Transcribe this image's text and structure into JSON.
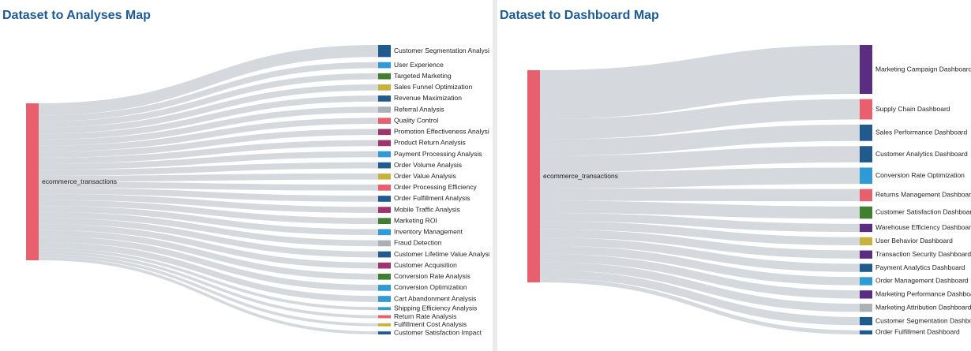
{
  "chart_data": [
    {
      "type": "sankey",
      "title": "Dataset to Analyses Map",
      "source": "ecommerce_transactions",
      "source_color": "#e8606e",
      "categories": [
        "Customer Segmentation Analysis",
        "User Experience",
        "Targeted Marketing",
        "Sales Funnel Optimization",
        "Revenue Maximization",
        "Referral Analysis",
        "Quality Control",
        "Promotion Effectiveness Analysis",
        "Product Return Analysis",
        "Payment Processing Analysis",
        "Order Volume Analysis",
        "Order Value Analysis",
        "Order Processing Efficiency",
        "Order Fulfillment Analysis",
        "Mobile Traffic Analysis",
        "Marketing ROI",
        "Inventory Management",
        "Fraud Detection",
        "Customer Lifetime Value Analysis",
        "Customer Acquisition",
        "Conversion Rate Analysis",
        "Conversion Optimization",
        "Cart Abandonment Analysis",
        "Shipping Efficiency Analysis",
        "Return Rate Analysis",
        "Fulfillment Cost Analysis",
        "Customer Satisfaction Impact"
      ],
      "values": [
        4,
        2,
        2,
        2,
        2,
        2,
        2,
        2,
        2,
        2,
        2,
        2,
        2,
        2,
        2,
        2,
        2,
        2,
        2,
        2,
        2,
        2,
        2,
        1,
        1,
        1,
        1
      ],
      "colors": [
        "#1f5b8e",
        "#2e9ad6",
        "#3f7f2f",
        "#c7b23a",
        "#1f5b8e",
        "#aab0b5",
        "#e8606e",
        "#a0336e",
        "#a0336e",
        "#2e9ad6",
        "#1f5b8e",
        "#c7b23a",
        "#e8606e",
        "#1f5b8e",
        "#a0336e",
        "#3f7f2f",
        "#2e9ad6",
        "#aab0b5",
        "#1f5b8e",
        "#a0336e",
        "#3f7f2f",
        "#2e9ad6",
        "#2e9ad6",
        "#2e9ad6",
        "#e8606e",
        "#c7b23a",
        "#1f5b8e"
      ]
    },
    {
      "type": "sankey",
      "title": "Dataset to Dashboard Map",
      "source": "ecommerce_transactions",
      "source_color": "#e8606e",
      "categories": [
        "Marketing Campaign Dashboard",
        "Supply Chain Dashboard",
        "Sales Performance Dashboard",
        "Customer Analytics Dashboard",
        "Conversion Rate Optimization",
        "Returns Management Dashboard",
        "Customer Satisfaction Dashboard",
        "Warehouse Efficiency Dashboard",
        "User Behavior Dashboard",
        "Transaction Security Dashboard",
        "Payment Analytics Dashboard",
        "Order Management Dashboard",
        "Marketing Performance Dashboard",
        "Marketing Attribution Dashboard",
        "Customer Segmentation Dashboard",
        "Order Fulfillment Dashboard"
      ],
      "values": [
        12,
        5,
        4,
        4,
        4,
        3,
        3,
        2,
        2,
        2,
        2,
        2,
        2,
        2,
        2,
        1
      ],
      "colors": [
        "#5a2d82",
        "#e8606e",
        "#1f5b8e",
        "#1f5b8e",
        "#2e9ad6",
        "#e8606e",
        "#3f7f2f",
        "#5a2d82",
        "#c7b23a",
        "#5a2d82",
        "#1f5b8e",
        "#2e9ad6",
        "#5a2d82",
        "#aab0b5",
        "#1f5b8e",
        "#1f5b8e"
      ]
    }
  ]
}
